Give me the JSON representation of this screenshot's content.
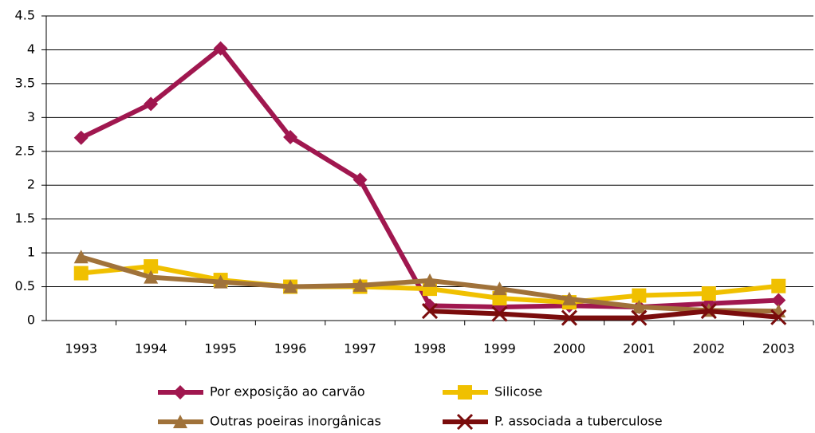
{
  "chart_data": {
    "type": "line",
    "categories": [
      "1993",
      "1994",
      "1995",
      "1996",
      "1997",
      "1998",
      "1999",
      "2000",
      "2001",
      "2002",
      "2003"
    ],
    "series": [
      {
        "name": "Por exposição ao carvão",
        "color": "#a0174f",
        "marker": "diamond",
        "values": [
          2.7,
          3.2,
          4.02,
          2.71,
          2.08,
          0.22,
          0.2,
          0.22,
          0.2,
          0.25,
          0.3
        ]
      },
      {
        "name": "Silicose",
        "color": "#f0c000",
        "marker": "square",
        "values": [
          0.7,
          0.8,
          0.6,
          0.5,
          0.5,
          0.47,
          0.33,
          0.27,
          0.37,
          0.4,
          0.51
        ]
      },
      {
        "name": "Outras poeiras inorgânicas",
        "color": "#a0723a",
        "marker": "triangle",
        "values": [
          0.94,
          0.64,
          0.57,
          0.5,
          0.52,
          0.59,
          0.47,
          0.32,
          0.2,
          0.15,
          0.14
        ]
      },
      {
        "name": "P. associada a tuberculose",
        "color": "#7a0c0c",
        "marker": "x",
        "values": [
          null,
          null,
          null,
          null,
          null,
          0.14,
          0.1,
          0.04,
          0.04,
          0.14,
          0.05
        ]
      }
    ],
    "ylim": [
      0,
      4.5
    ],
    "yticks": [
      0,
      0.5,
      1,
      1.5,
      2,
      2.5,
      3,
      3.5,
      4,
      4.5
    ],
    "grid": true
  }
}
